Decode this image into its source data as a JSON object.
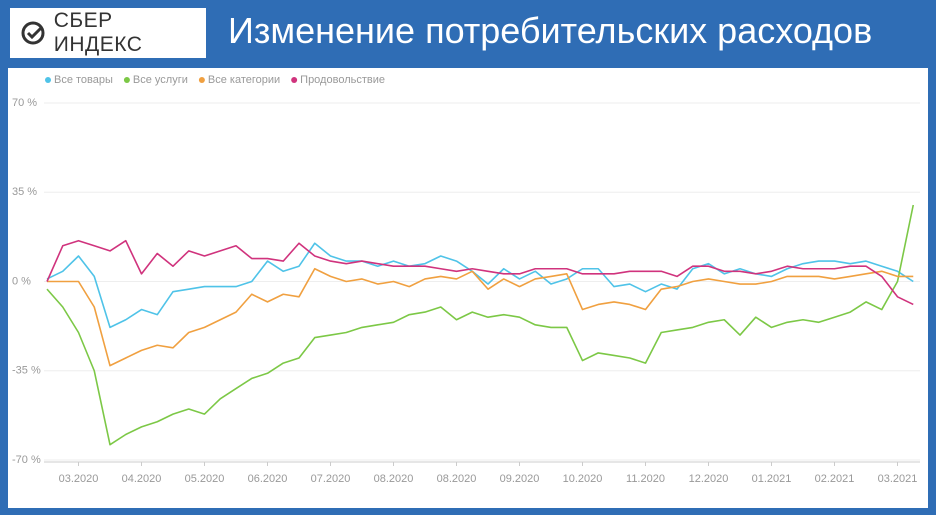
{
  "header": {
    "logo": "СБЕР ИНДЕКС"
  },
  "chart_data": {
    "type": "line",
    "title": "Изменение потребительских расходов",
    "categories": [
      null,
      null,
      "03.2020",
      null,
      null,
      null,
      "04.2020",
      null,
      null,
      null,
      "05.2020",
      null,
      null,
      null,
      "06.2020",
      null,
      null,
      null,
      "07.2020",
      null,
      null,
      null,
      "08.2020",
      null,
      null,
      null,
      "08.2020",
      null,
      null,
      null,
      "09.2020",
      null,
      null,
      null,
      "10.2020",
      null,
      null,
      null,
      "11.2020",
      null,
      null,
      null,
      "12.2020",
      null,
      null,
      null,
      "01.2021",
      null,
      null,
      null,
      "02.2021",
      null,
      null,
      null,
      "03.2021",
      null
    ],
    "series": [
      {
        "name": "Все товары",
        "color": "#4fc3e8",
        "values": [
          1,
          4,
          10,
          2,
          -18,
          -15,
          -11,
          -13,
          -4,
          -3,
          -2,
          -2,
          -2,
          0,
          8,
          4,
          6,
          15,
          10,
          8,
          8,
          6,
          8,
          6,
          7,
          10,
          8,
          4,
          -1,
          5,
          1,
          4,
          -1,
          1,
          5,
          5,
          -2,
          -1,
          -4,
          -1,
          -3,
          5,
          7,
          3,
          5,
          3,
          2,
          5,
          7,
          8,
          8,
          7,
          8,
          6,
          4,
          0
        ]
      },
      {
        "name": "Все услуги",
        "color": "#7cc846",
        "values": [
          -3,
          -10,
          -20,
          -35,
          -64,
          -60,
          -57,
          -55,
          -52,
          -50,
          -52,
          -46,
          -42,
          -38,
          -36,
          -32,
          -30,
          -22,
          -21,
          -20,
          -18,
          -17,
          -16,
          -13,
          -12,
          -10,
          -15,
          -12,
          -14,
          -13,
          -14,
          -17,
          -18,
          -18,
          -31,
          -28,
          -29,
          -30,
          -32,
          -20,
          -19,
          -18,
          -16,
          -15,
          -21,
          -14,
          -18,
          -16,
          -15,
          -16,
          -14,
          -12,
          -8,
          -11,
          0,
          30
        ]
      },
      {
        "name": "Все категории",
        "color": "#f0a040",
        "values": [
          0,
          0,
          0,
          -10,
          -33,
          -30,
          -27,
          -25,
          -26,
          -20,
          -18,
          -15,
          -12,
          -5,
          -8,
          -5,
          -6,
          5,
          2,
          0,
          1,
          -1,
          0,
          -2,
          1,
          2,
          1,
          4,
          -3,
          1,
          -2,
          1,
          2,
          3,
          -11,
          -9,
          -8,
          -9,
          -11,
          -3,
          -2,
          0,
          1,
          0,
          -1,
          -1,
          0,
          2,
          2,
          2,
          1,
          2,
          3,
          4,
          2,
          2
        ]
      },
      {
        "name": "Продовольствие",
        "color": "#d0337d",
        "values": [
          0,
          14,
          16,
          14,
          12,
          16,
          3,
          11,
          6,
          12,
          10,
          12,
          14,
          9,
          9,
          8,
          15,
          10,
          8,
          7,
          8,
          7,
          6,
          6,
          6,
          5,
          4,
          5,
          4,
          3,
          3,
          5,
          5,
          5,
          3,
          3,
          3,
          4,
          4,
          4,
          2,
          6,
          6,
          4,
          4,
          3,
          4,
          6,
          5,
          5,
          5,
          6,
          6,
          2,
          -6,
          -9
        ]
      }
    ],
    "ylim": [
      -70,
      70
    ],
    "yticks": [
      {
        "value": 70,
        "label": "70 %"
      },
      {
        "value": 35,
        "label": "35 %"
      },
      {
        "value": 0,
        "label": "0 %"
      },
      {
        "value": -35,
        "label": "-35 %"
      },
      {
        "value": -70,
        "label": "-70 %"
      }
    ],
    "grid": true,
    "legend": "top-left"
  }
}
